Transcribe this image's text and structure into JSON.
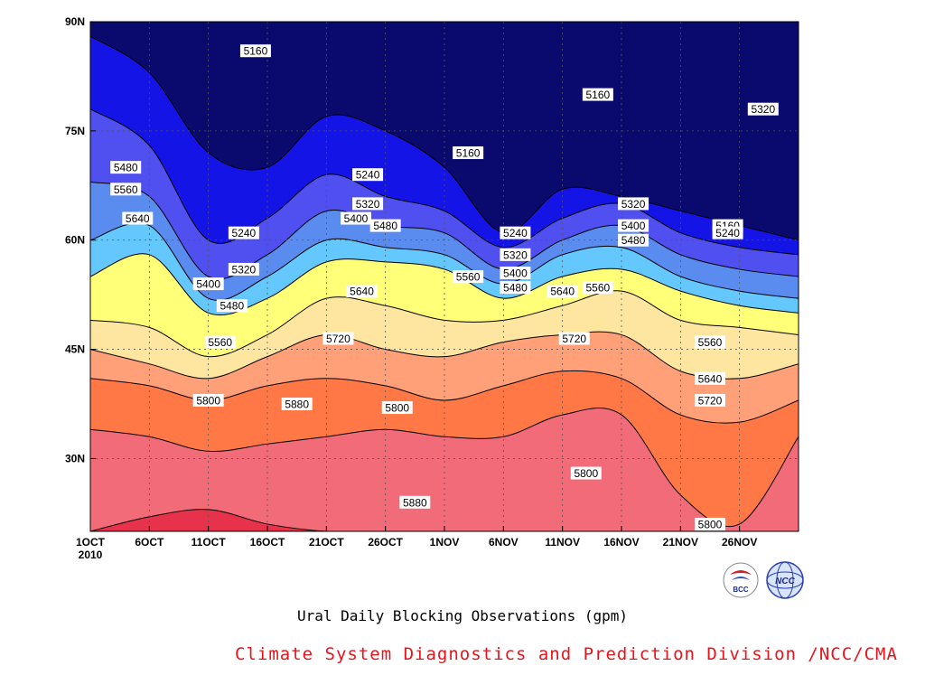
{
  "chart_data": {
    "type": "heatmap",
    "subtype": "filled-contour (time-latitude Hovmoller)",
    "title": "Ural Daily Blocking Observations (gpm)",
    "x_ticks": [
      "1OCT",
      "6OCT",
      "11OCT",
      "16OCT",
      "21OCT",
      "26OCT",
      "1NOV",
      "6NOV",
      "11NOV",
      "16NOV",
      "21NOV",
      "26NOV"
    ],
    "x_year_label": "2010",
    "y_ticks": [
      "30N",
      "45N",
      "60N",
      "75N",
      "90N"
    ],
    "y_tick_values": [
      30,
      45,
      60,
      75,
      90
    ],
    "ylim": [
      20,
      90
    ],
    "x_range_days": [
      0,
      60
    ],
    "grid": "dotted",
    "contour_levels": [
      5160,
      5240,
      5320,
      5400,
      5480,
      5560,
      5640,
      5720,
      5800,
      5880
    ],
    "colors": [
      "#0a0a6e",
      "#1414e6",
      "#5050f0",
      "#5a8cf0",
      "#64c8ff",
      "#ffff78",
      "#ffe6a0",
      "#ffa078",
      "#ff7846",
      "#f26b78",
      "#e6324b"
    ],
    "contour_lines": [
      {
        "level": 5880,
        "y": [
          20,
          22,
          23,
          21,
          20,
          20,
          20,
          20,
          20,
          20,
          20,
          20,
          20
        ]
      },
      {
        "level": 5800,
        "y": [
          34,
          33,
          31,
          32,
          33,
          34,
          33,
          33,
          36,
          36,
          25,
          21,
          33
        ]
      },
      {
        "level": 5720,
        "y": [
          41,
          40,
          38,
          40,
          41,
          40,
          38,
          40,
          42,
          41,
          36,
          35,
          38
        ]
      },
      {
        "level": 5640,
        "y": [
          45,
          43,
          41,
          44,
          47,
          45,
          44,
          46,
          47,
          47,
          42,
          41,
          43
        ]
      },
      {
        "level": 5560,
        "y": [
          49,
          48,
          44,
          47,
          52,
          51,
          49,
          49,
          51,
          53,
          49,
          48,
          47
        ]
      },
      {
        "level": 5480,
        "y": [
          55,
          58,
          50,
          52,
          57,
          57,
          56,
          52,
          55,
          56,
          53,
          51,
          50
        ]
      },
      {
        "level": 5400,
        "y": [
          60,
          62,
          52,
          55,
          60,
          59,
          58,
          54,
          58,
          59,
          55,
          53,
          52
        ]
      },
      {
        "level": 5320,
        "y": [
          68,
          66,
          55,
          58,
          64,
          62,
          61,
          56,
          60,
          62,
          58,
          56,
          55
        ]
      },
      {
        "level": 5240,
        "y": [
          78,
          73,
          60,
          63,
          69,
          66,
          64,
          59,
          63,
          65,
          61,
          59,
          58
        ]
      },
      {
        "level": 5160,
        "y": [
          88,
          83,
          72,
          70,
          77,
          75,
          70,
          61,
          67,
          66,
          64,
          62,
          60
        ]
      }
    ],
    "contour_labels": [
      {
        "text": "5160",
        "day": 14,
        "lat": 86
      },
      {
        "text": "5160",
        "day": 32,
        "lat": 72
      },
      {
        "text": "5160",
        "day": 43,
        "lat": 80
      },
      {
        "text": "5160",
        "day": 54,
        "lat": 62
      },
      {
        "text": "5240",
        "day": 23.5,
        "lat": 69
      },
      {
        "text": "5240",
        "day": 13,
        "lat": 61
      },
      {
        "text": "5240",
        "day": 36,
        "lat": 61
      },
      {
        "text": "5240",
        "day": 54,
        "lat": 61
      },
      {
        "text": "5320",
        "day": 13,
        "lat": 56
      },
      {
        "text": "5320",
        "day": 23.5,
        "lat": 65
      },
      {
        "text": "5320",
        "day": 36,
        "lat": 58
      },
      {
        "text": "5320",
        "day": 46,
        "lat": 65
      },
      {
        "text": "5320",
        "day": 57,
        "lat": 78
      },
      {
        "text": "5400",
        "day": 10,
        "lat": 54
      },
      {
        "text": "5400",
        "day": 22.5,
        "lat": 63
      },
      {
        "text": "5400",
        "day": 36,
        "lat": 55.5
      },
      {
        "text": "5400",
        "day": 46,
        "lat": 62
      },
      {
        "text": "5480",
        "day": 3,
        "lat": 70
      },
      {
        "text": "5480",
        "day": 12,
        "lat": 51
      },
      {
        "text": "5480",
        "day": 25,
        "lat": 62
      },
      {
        "text": "5480",
        "day": 36,
        "lat": 53.5
      },
      {
        "text": "5480",
        "day": 46,
        "lat": 60
      },
      {
        "text": "5560",
        "day": 3,
        "lat": 67
      },
      {
        "text": "5560",
        "day": 11,
        "lat": 46
      },
      {
        "text": "5560",
        "day": 32,
        "lat": 55
      },
      {
        "text": "5560",
        "day": 43,
        "lat": 53.5
      },
      {
        "text": "5560",
        "day": 52.5,
        "lat": 46
      },
      {
        "text": "5640",
        "day": 4,
        "lat": 63
      },
      {
        "text": "5640",
        "day": 23,
        "lat": 53
      },
      {
        "text": "5640",
        "day": 40,
        "lat": 53
      },
      {
        "text": "5640",
        "day": 52.5,
        "lat": 41
      },
      {
        "text": "5720",
        "day": 21,
        "lat": 46.5
      },
      {
        "text": "5720",
        "day": 41,
        "lat": 46.5
      },
      {
        "text": "5720",
        "day": 52.5,
        "lat": 38
      },
      {
        "text": "5800",
        "day": 10,
        "lat": 38
      },
      {
        "text": "5800",
        "day": 26,
        "lat": 37
      },
      {
        "text": "5800",
        "day": 42,
        "lat": 28
      },
      {
        "text": "5800",
        "day": 52.5,
        "lat": 21
      },
      {
        "text": "5880",
        "day": 17.5,
        "lat": 37.5
      },
      {
        "text": "5880",
        "day": 27.5,
        "lat": 24
      }
    ]
  },
  "title": "Ural Daily Blocking Observations (gpm)",
  "credit": "Climate System Diagnostics and Prediction Division /NCC/CMA",
  "logos": {
    "bcc": "BCC",
    "ncc": "NCC"
  }
}
